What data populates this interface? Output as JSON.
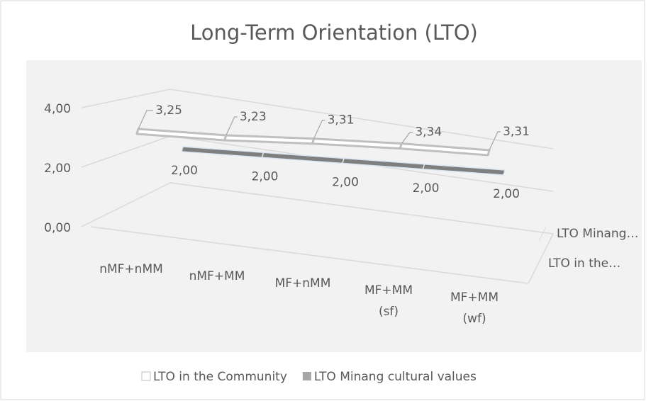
{
  "chart_data": {
    "type": "line3d",
    "title": "Long-Term Orientation (LTO)",
    "categories": [
      "nMF+nMM",
      "nMF+MM",
      "MF+nMM",
      "MF+MM (sf)",
      "MF+MM (wf)"
    ],
    "series": [
      {
        "name": "LTO in the Community",
        "color": "#ffffff",
        "edge": "#bfbfbf",
        "values": [
          3.25,
          3.23,
          3.31,
          3.34,
          3.31
        ],
        "value_labels": [
          "3,25",
          "3,23",
          "3,31",
          "3,34",
          "3,31"
        ]
      },
      {
        "name": "LTO Minang cultural values",
        "color": "#7f7f7f",
        "edge": "#dce6f2",
        "values": [
          2,
          2,
          2,
          2,
          2
        ],
        "value_labels": [
          "2,00",
          "2,00",
          "2,00",
          "2,00",
          "2,00"
        ]
      }
    ],
    "depth_labels": [
      "LTO Minang…",
      "LTO in the…"
    ],
    "ylim": [
      0,
      4
    ],
    "yticks": [
      {
        "value": 0,
        "label": "0,00"
      },
      {
        "value": 2,
        "label": "2,00"
      },
      {
        "value": 4,
        "label": "4,00"
      }
    ],
    "grid": true,
    "legend": "bottom"
  }
}
